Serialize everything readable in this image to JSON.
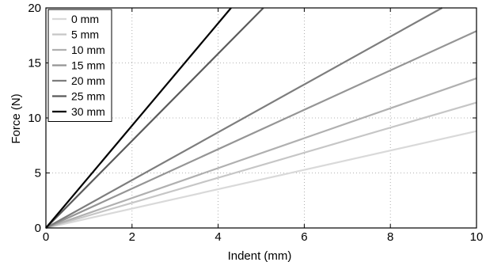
{
  "chart_data": {
    "type": "line",
    "title": "",
    "xlabel": "Indent (mm)",
    "ylabel": "Force (N)",
    "xlim": [
      0,
      10
    ],
    "ylim": [
      0,
      20
    ],
    "xticks": [
      "0",
      "2",
      "4",
      "6",
      "8",
      "10"
    ],
    "yticks": [
      "0",
      "5",
      "10",
      "15",
      "20"
    ],
    "grid": true,
    "legend_position": "top-left",
    "series": [
      {
        "name": "0 mm",
        "color": "#d9d9d9",
        "x": [
          0,
          10
        ],
        "y": [
          0,
          8.8
        ]
      },
      {
        "name": "5 mm",
        "color": "#c6c6c6",
        "x": [
          0,
          10
        ],
        "y": [
          0,
          11.4
        ]
      },
      {
        "name": "10 mm",
        "color": "#b0b0b0",
        "x": [
          0,
          10
        ],
        "y": [
          0,
          13.6
        ]
      },
      {
        "name": "15 mm",
        "color": "#959595",
        "x": [
          0,
          10
        ],
        "y": [
          0,
          17.9
        ]
      },
      {
        "name": "20 mm",
        "color": "#7d7d7d",
        "x": [
          0,
          9.2
        ],
        "y": [
          0,
          20
        ]
      },
      {
        "name": "25 mm",
        "color": "#5a5a5a",
        "x": [
          0,
          5.05
        ],
        "y": [
          0,
          20
        ]
      },
      {
        "name": "30 mm",
        "color": "#000000",
        "x": [
          0,
          4.3
        ],
        "y": [
          0,
          20
        ]
      }
    ]
  }
}
